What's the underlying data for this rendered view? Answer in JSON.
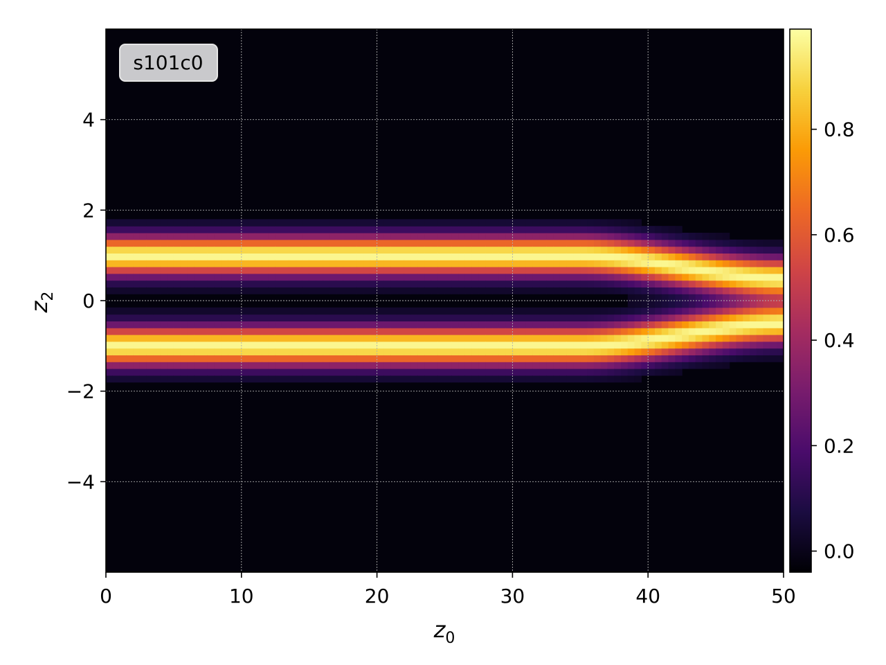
{
  "chart_data": {
    "type": "heatmap",
    "badge": "s101c0",
    "xlabel": {
      "base": "z",
      "sub": "0"
    },
    "ylabel": {
      "base": "z",
      "sub": "2"
    },
    "xlim": [
      0,
      50
    ],
    "ylim": [
      -6,
      6
    ],
    "x_ticks": [
      0,
      10,
      20,
      30,
      40,
      50
    ],
    "x_tick_labels": [
      "0",
      "10",
      "20",
      "30",
      "40",
      "50"
    ],
    "y_ticks": [
      -4,
      -2,
      0,
      2,
      4
    ],
    "y_tick_labels": [
      "−4",
      "−2",
      "0",
      "2",
      "4"
    ],
    "grid": true,
    "colormap": "inferno",
    "colorbar": {
      "range": [
        -0.04,
        0.99
      ],
      "ticks": [
        0.0,
        0.2,
        0.4,
        0.6,
        0.8
      ],
      "tick_labels": [
        "0.0",
        "0.2",
        "0.4",
        "0.6",
        "0.8"
      ]
    },
    "grid_cells": {
      "nx": 100,
      "ny": 80
    },
    "bands": [
      {
        "center_start": 1.0,
        "center_end": 0.5,
        "width": 0.3,
        "peak": 0.97,
        "split_start_x": 35
      },
      {
        "center_start": -1.0,
        "center_end": -0.5,
        "width": 0.3,
        "peak": 0.97,
        "split_start_x": 35
      }
    ],
    "colors": {
      "background": "#03020c",
      "inferno_stops": [
        "#000004",
        "#1b0c41",
        "#4a0c6b",
        "#781c6d",
        "#a52c60",
        "#cf4446",
        "#ed6925",
        "#fb9b06",
        "#f7d13d",
        "#fcffa4"
      ]
    }
  }
}
